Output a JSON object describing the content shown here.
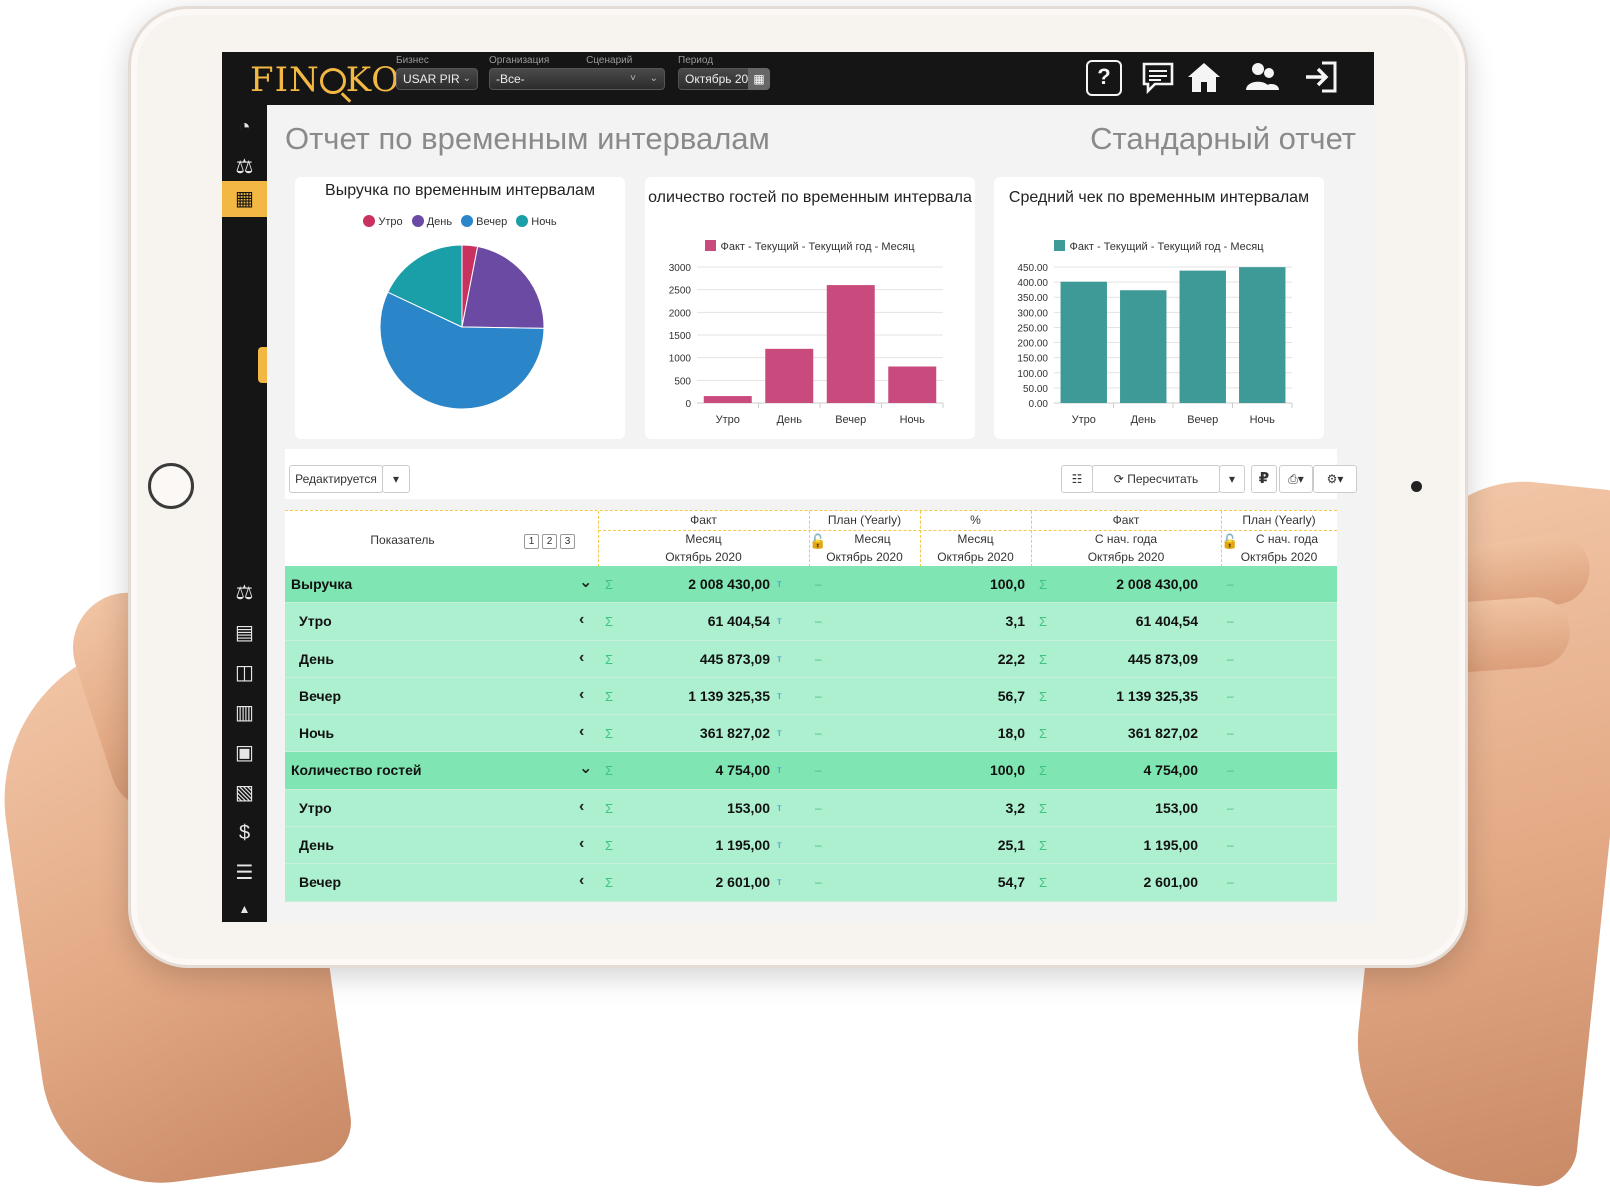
{
  "header": {
    "logo": "FIN KO",
    "fields": [
      {
        "label": "Бизнес",
        "value": "USAR PIR"
      },
      {
        "label": "Организация",
        "value": "-Все-"
      },
      {
        "label": "Сценарий",
        "value": ""
      },
      {
        "label": "Период",
        "value": "Октябрь 20"
      }
    ],
    "icons": [
      "help-icon",
      "chat-icon",
      "home-icon",
      "users-icon",
      "logout-icon"
    ],
    "help_glyph": "?"
  },
  "page": {
    "title": "Отчет по временным интервалам",
    "report_type": "Стандарный отчет"
  },
  "chart_data": [
    {
      "type": "pie",
      "title": "Выручка по временным интервалам",
      "categories": [
        "Утро",
        "День",
        "Вечер",
        "Ночь"
      ],
      "values": [
        61404.54,
        445873.09,
        1139325.35,
        361827.02
      ],
      "colors": [
        "#c9325f",
        "#6a4aa3",
        "#2a86c9",
        "#1a9ea8"
      ],
      "legend": "top"
    },
    {
      "type": "bar",
      "title": "оличество гостей по временным интервала",
      "categories": [
        "Утро",
        "День",
        "Вечер",
        "Ночь"
      ],
      "series": [
        {
          "name": "Факт - Текущий - Текущий год - Месяц",
          "values": [
            153,
            1195,
            2601,
            805
          ],
          "color": "#c94a7c"
        }
      ],
      "yticks": [
        "3000",
        "2500",
        "2000",
        "1500",
        "1000",
        "500",
        "0"
      ],
      "ylim": [
        0,
        3000
      ],
      "legend": "top"
    },
    {
      "type": "bar",
      "title": "Средний чек по временным интервалам",
      "categories": [
        "Утро",
        "День",
        "Вечер",
        "Ночь"
      ],
      "series": [
        {
          "name": "Факт - Текущий - Текущий год - Месяц",
          "values": [
            401.3,
            373.1,
            438.0,
            449.5
          ],
          "color": "#3d9a96"
        }
      ],
      "yticks": [
        "450.00",
        "400.00",
        "350.00",
        "300.00",
        "250.00",
        "200.00",
        "150.00",
        "100.00",
        "50.00",
        "0.00"
      ],
      "ylim": [
        0,
        450
      ],
      "legend": "top"
    }
  ],
  "toolbar": {
    "edit_mode": "Редактируется",
    "recalc": "Пересчитать",
    "currency": "₽"
  },
  "table": {
    "indicator_header": "Показатель",
    "levels": [
      "1",
      "2",
      "3"
    ],
    "columns": [
      {
        "top": "Факт",
        "mid": "Месяц",
        "bottom": "Октябрь 2020"
      },
      {
        "top": "План (Yearly)",
        "mid": "Месяц",
        "bottom": "Октябрь 2020"
      },
      {
        "top": "%",
        "mid": "Месяц",
        "bottom": "Октябрь 2020"
      },
      {
        "top": "Факт",
        "mid": "С нач. года",
        "bottom": "Октябрь 2020"
      },
      {
        "top": "План (Yearly)",
        "mid": "С нач. года",
        "bottom": "Октябрь 2020"
      }
    ],
    "sigma": "Σ",
    "tmark": "т",
    "dash": "–",
    "rows": [
      {
        "kind": "group",
        "name": "Выручка",
        "fact": "2 008 430,00",
        "pct": "100,0",
        "ytd": "2 008 430,00"
      },
      {
        "kind": "sub",
        "name": "Утро",
        "fact": "61 404,54",
        "pct": "3,1",
        "ytd": "61 404,54"
      },
      {
        "kind": "sub",
        "name": "День",
        "fact": "445 873,09",
        "pct": "22,2",
        "ytd": "445 873,09"
      },
      {
        "kind": "sub",
        "name": "Вечер",
        "fact": "1 139 325,35",
        "pct": "56,7",
        "ytd": "1 139 325,35"
      },
      {
        "kind": "sub",
        "name": "Ночь",
        "fact": "361 827,02",
        "pct": "18,0",
        "ytd": "361 827,02"
      },
      {
        "kind": "group",
        "name": "Количество гостей",
        "fact": "4 754,00",
        "pct": "100,0",
        "ytd": "4 754,00"
      },
      {
        "kind": "sub",
        "name": "Утро",
        "fact": "153,00",
        "pct": "3,2",
        "ytd": "153,00"
      },
      {
        "kind": "sub",
        "name": "День",
        "fact": "1 195,00",
        "pct": "25,1",
        "ytd": "1 195,00"
      },
      {
        "kind": "sub",
        "name": "Вечер",
        "fact": "2 601,00",
        "pct": "54,7",
        "ytd": "2 601,00"
      }
    ]
  }
}
